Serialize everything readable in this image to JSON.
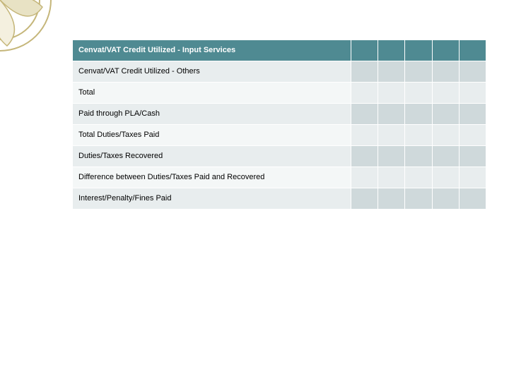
{
  "decor": {
    "stroke": "#c5b67a",
    "fill_leaf": "#e8e2c4"
  },
  "table": {
    "col_count": 5,
    "rows": [
      {
        "kind": "header",
        "label": "Cenvat/VAT Credit Utilized - Input Services"
      },
      {
        "kind": "body",
        "label": "Cenvat/VAT Credit Utilized - Others"
      },
      {
        "kind": "body",
        "label": "Total"
      },
      {
        "kind": "body",
        "label": "Paid through PLA/Cash"
      },
      {
        "kind": "body",
        "label": "Total Duties/Taxes Paid"
      },
      {
        "kind": "body",
        "label": "Duties/Taxes Recovered"
      },
      {
        "kind": "body",
        "label": "Difference between Duties/Taxes Paid and Recovered"
      },
      {
        "kind": "body",
        "label": "Interest/Penalty/Fines Paid"
      }
    ],
    "colors": {
      "header_bg": "#4f8a92",
      "header_fg": "#ffffff",
      "alt0_label_bg": "#e8edee",
      "alt0_col_bg": "#cfd9db",
      "alt1_label_bg": "#f4f7f7",
      "alt1_col_bg": "#e8edee",
      "border": "#ffffff"
    }
  }
}
